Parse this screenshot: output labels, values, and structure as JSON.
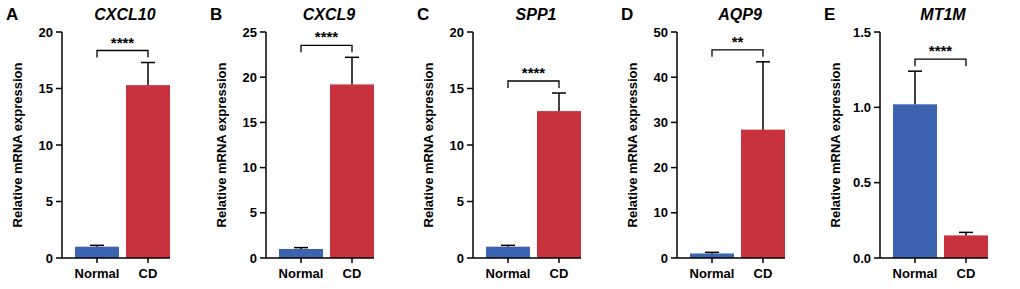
{
  "chart_data": [
    {
      "type": "bar",
      "panel": "A",
      "title": "CXCL10",
      "y_label": "Relative mRNA expression",
      "categories": [
        "Normal",
        "CD"
      ],
      "values": [
        1.0,
        15.3
      ],
      "errors": [
        0.12,
        2.0
      ],
      "colors": [
        "#3b63b0",
        "#c8313e"
      ],
      "ylim": [
        0,
        20
      ],
      "yticks": [
        0,
        5,
        10,
        15,
        20
      ],
      "annotations": [
        "****"
      ]
    },
    {
      "type": "bar",
      "panel": "B",
      "title": "CXCL9",
      "y_label": "Relative mRNA expression",
      "categories": [
        "Normal",
        "CD"
      ],
      "values": [
        1.0,
        19.2
      ],
      "errors": [
        0.15,
        3.0
      ],
      "colors": [
        "#3b63b0",
        "#c8313e"
      ],
      "ylim": [
        0,
        25
      ],
      "yticks": [
        0,
        5,
        10,
        15,
        20,
        25
      ],
      "annotations": [
        "****"
      ]
    },
    {
      "type": "bar",
      "panel": "C",
      "title": "SPP1",
      "y_label": "Relative mRNA expression",
      "categories": [
        "Normal",
        "CD"
      ],
      "values": [
        1.0,
        13.0
      ],
      "errors": [
        0.12,
        1.6
      ],
      "colors": [
        "#3b63b0",
        "#c8313e"
      ],
      "ylim": [
        0,
        20
      ],
      "yticks": [
        0,
        5,
        10,
        15,
        20
      ],
      "annotations": [
        "****"
      ]
    },
    {
      "type": "bar",
      "panel": "D",
      "title": "AQP9",
      "y_label": "Relative mRNA expression",
      "categories": [
        "Normal",
        "CD"
      ],
      "values": [
        1.0,
        28.4
      ],
      "errors": [
        0.25,
        15.0
      ],
      "colors": [
        "#3b63b0",
        "#c8313e"
      ],
      "ylim": [
        0,
        50
      ],
      "yticks": [
        0,
        10,
        20,
        30,
        40,
        50
      ],
      "annotations": [
        "**"
      ]
    },
    {
      "type": "bar",
      "panel": "E",
      "title": "MT1M",
      "y_label": "Relative mRNA expression",
      "categories": [
        "Normal",
        "CD"
      ],
      "values": [
        1.02,
        0.15
      ],
      "errors": [
        0.22,
        0.02
      ],
      "colors": [
        "#3b63b0",
        "#c8313e"
      ],
      "ylim": [
        0,
        1.5
      ],
      "yticks": [
        {
          "value": 0,
          "label": "0.0"
        },
        0.5,
        {
          "value": 1,
          "label": "1.0"
        },
        1.5
      ],
      "annotations": [
        "****"
      ]
    }
  ]
}
